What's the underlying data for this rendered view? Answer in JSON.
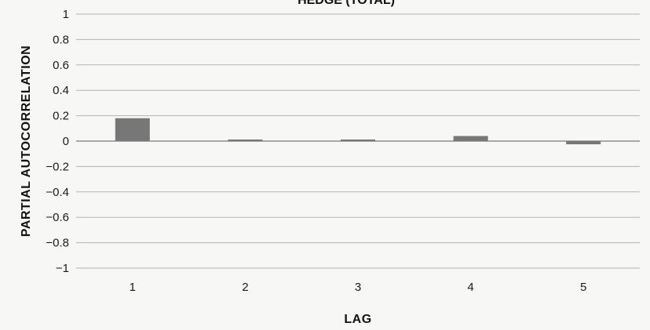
{
  "chart_data": {
    "type": "bar",
    "title": "HEDGE (TOTAL)",
    "xlabel": "LAG",
    "ylabel": "PARTIAL AUTOCORRELATION",
    "categories": [
      "1",
      "2",
      "3",
      "4",
      "5"
    ],
    "values": [
      0.18,
      0.01,
      0.005,
      0.04,
      -0.025
    ],
    "ylim": [
      -1,
      1
    ],
    "yticks": [
      1,
      0.8,
      0.6,
      0.4,
      0.2,
      0,
      -0.2,
      -0.4,
      -0.6,
      -0.8,
      -1
    ],
    "ytick_labels": [
      "1",
      "0.8",
      "0.6",
      "0.4",
      "0.2",
      "0",
      "−0.2",
      "−0.4",
      "−0.6",
      "−0.8",
      "−1"
    ],
    "grid": true,
    "legend": "none",
    "colors": {
      "bar": "#777777",
      "grid": "#b3b3b3",
      "background": "#f7f7f5"
    }
  }
}
